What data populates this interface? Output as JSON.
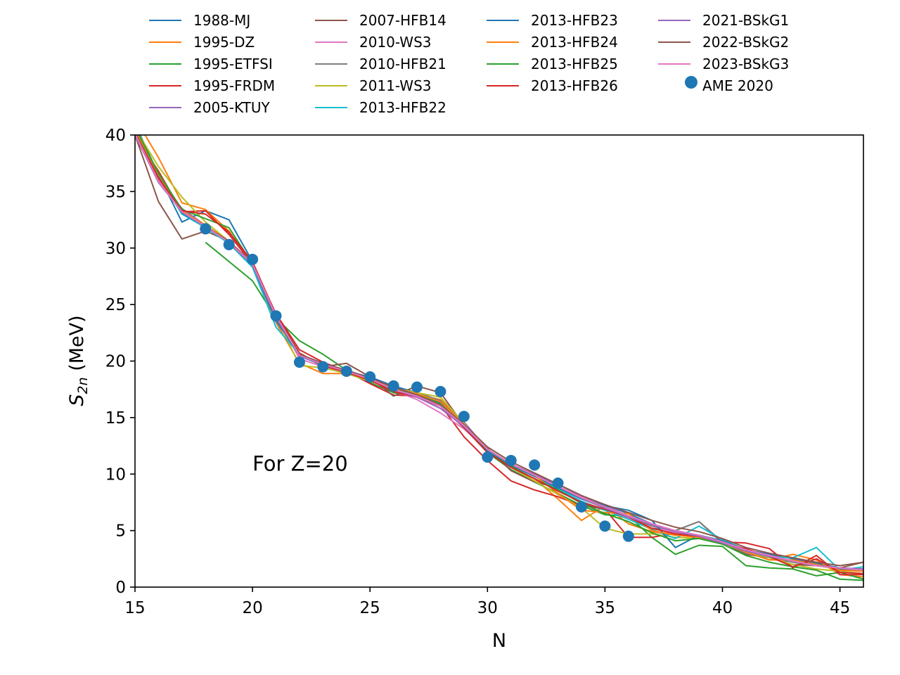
{
  "chart_data": {
    "type": "line",
    "xlabel": "N",
    "ylabel_main": "S",
    "ylabel_sub": "2n",
    "ylabel_unit": " (MeV)",
    "xlim": [
      15,
      46
    ],
    "ylim": [
      0,
      40
    ],
    "x_ticks": [
      15,
      20,
      25,
      30,
      35,
      40,
      45
    ],
    "y_ticks": [
      0,
      5,
      10,
      15,
      20,
      25,
      30,
      35,
      40
    ],
    "annotation": {
      "text": "For Z=20",
      "x": 20,
      "y": 10.3
    },
    "legend_columns": [
      [
        "1988-MJ",
        "1995-DZ",
        "1995-ETFSI",
        "1995-FRDM",
        "2005-KTUY"
      ],
      [
        "2007-HFB14",
        "2010-WS3",
        "2010-HFB21",
        "2011-WS3",
        "2013-HFB22"
      ],
      [
        "2013-HFB23",
        "2013-HFB24",
        "2013-HFB25",
        "2013-HFB26"
      ],
      [
        "2021-BSkG1",
        "2022-BSkG2",
        "2023-BSkG3",
        "AME 2020"
      ]
    ],
    "series": [
      {
        "name": "1988-MJ",
        "color": "#1f77b4",
        "x": [
          15,
          16,
          17,
          18,
          19,
          20,
          21,
          22,
          23,
          24,
          25,
          26,
          27,
          28,
          29,
          30,
          31,
          32,
          33,
          34,
          35,
          36,
          37,
          38,
          39,
          40,
          41,
          42,
          43,
          44,
          45,
          46
        ],
        "y": [
          41.0,
          36.5,
          32.3,
          33.3,
          32.5,
          28.8,
          23.6,
          20.6,
          19.8,
          19.1,
          18.6,
          17.8,
          17.2,
          16.5,
          14.5,
          12.1,
          10.8,
          10.0,
          8.9,
          8.0,
          7.3,
          6.5,
          5.6,
          4.9,
          4.5,
          4.0,
          3.3,
          2.9,
          2.5,
          2.1,
          1.7,
          1.5
        ]
      },
      {
        "name": "1995-DZ",
        "color": "#ff7f0e",
        "x": [
          15,
          16,
          17,
          18,
          19,
          20,
          21,
          22,
          23,
          24,
          25,
          26,
          27,
          28,
          29,
          30,
          31,
          32,
          33,
          34,
          35,
          36,
          37,
          38,
          39,
          40,
          41,
          42,
          43,
          44,
          45,
          46
        ],
        "y": [
          41.5,
          38.0,
          34.0,
          33.4,
          31.5,
          28.5,
          23.4,
          19.8,
          18.9,
          18.9,
          18.5,
          17.2,
          17.0,
          16.6,
          14.6,
          12.0,
          10.6,
          9.6,
          7.8,
          5.9,
          7.2,
          5.6,
          4.9,
          4.6,
          4.4,
          4.0,
          3.1,
          2.4,
          2.9,
          2.4,
          1.1,
          0.9
        ]
      },
      {
        "name": "1995-ETFSI",
        "color": "#2ca02c",
        "x": [
          18,
          19,
          20,
          21,
          22,
          23,
          24,
          25,
          26,
          27,
          28,
          29,
          30,
          31,
          32,
          33,
          34,
          35,
          36,
          37,
          38,
          39,
          40,
          41,
          42,
          43,
          44,
          45,
          46
        ],
        "y": [
          30.5,
          28.8,
          27.1,
          23.8,
          21.8,
          20.6,
          19.2,
          18.1,
          17.2,
          16.9,
          16.0,
          14.2,
          11.9,
          10.4,
          9.3,
          8.3,
          7.2,
          6.4,
          6.3,
          4.4,
          2.9,
          3.7,
          3.6,
          1.9,
          1.7,
          1.6,
          1.0,
          1.3,
          0.7
        ]
      },
      {
        "name": "1995-FRDM",
        "color": "#d62728",
        "x": [
          15,
          16,
          17,
          18,
          19,
          20,
          21,
          22,
          23,
          24,
          25,
          26,
          27,
          28,
          29,
          30,
          31,
          32,
          33,
          34,
          35,
          36,
          37,
          38,
          39,
          40,
          41,
          42,
          43,
          44,
          45,
          46
        ],
        "y": [
          40.0,
          36.8,
          33.2,
          33.3,
          31.2,
          28.6,
          24.2,
          21.0,
          19.9,
          19.1,
          18.0,
          17.0,
          16.9,
          16.1,
          13.3,
          11.2,
          9.4,
          8.6,
          8.0,
          7.2,
          6.9,
          4.4,
          4.4,
          4.8,
          4.5,
          4.0,
          3.9,
          3.4,
          1.7,
          2.8,
          1.1,
          1.1
        ]
      },
      {
        "name": "2005-KTUY",
        "color": "#9467bd",
        "x": [
          15,
          16,
          17,
          18,
          19,
          20,
          21,
          22,
          23,
          24,
          25,
          26,
          27,
          28,
          29,
          30,
          31,
          32,
          33,
          34,
          35,
          36,
          37,
          38,
          39,
          40,
          41,
          42,
          43,
          44,
          45,
          46
        ],
        "y": [
          39.9,
          36.1,
          33.5,
          32.0,
          30.6,
          28.7,
          24.0,
          20.4,
          19.7,
          19.2,
          18.5,
          17.7,
          17.0,
          16.3,
          14.6,
          12.2,
          10.9,
          10.0,
          9.1,
          8.1,
          7.2,
          6.3,
          5.6,
          4.9,
          4.5,
          4.0,
          3.3,
          2.8,
          2.3,
          1.9,
          1.7,
          1.6
        ]
      },
      {
        "name": "2007-HFB14",
        "color": "#8c564b",
        "x": [
          15,
          16,
          17,
          18,
          19,
          20,
          21,
          22,
          23,
          24,
          25,
          26,
          27,
          28,
          29,
          30,
          31,
          32,
          33,
          34,
          35,
          36,
          37,
          38,
          39,
          40,
          41,
          42,
          43,
          44,
          45,
          46
        ],
        "y": [
          40.0,
          34.1,
          30.8,
          31.5,
          30.6,
          28.6,
          23.8,
          20.7,
          19.5,
          19.8,
          18.6,
          16.9,
          17.8,
          17.2,
          14.3,
          12.3,
          10.3,
          9.3,
          8.8,
          7.4,
          6.8,
          6.1,
          5.2,
          5.0,
          5.8,
          3.9,
          2.9,
          2.6,
          2.0,
          1.9,
          1.7,
          2.2
        ]
      },
      {
        "name": "2010-WS3",
        "color": "#e377c2",
        "x": [
          15,
          16,
          17,
          18,
          19,
          20,
          21,
          22,
          23,
          24,
          25,
          26,
          27,
          28,
          29,
          30,
          31,
          32,
          33,
          34,
          35,
          36,
          37,
          38,
          39,
          40,
          41,
          42,
          43,
          44,
          45,
          46
        ],
        "y": [
          40.2,
          36.0,
          33.3,
          32.0,
          30.5,
          28.5,
          24.2,
          20.2,
          19.5,
          19.0,
          18.3,
          17.4,
          16.6,
          15.4,
          14.0,
          12.2,
          10.9,
          9.9,
          8.9,
          8.0,
          7.0,
          6.1,
          5.4,
          4.8,
          4.4,
          3.8,
          3.2,
          2.7,
          2.2,
          1.9,
          1.7,
          1.5
        ]
      },
      {
        "name": "2010-HFB21",
        "color": "#7f7f7f",
        "x": [
          15,
          16,
          17,
          18,
          19,
          20,
          21,
          22,
          23,
          24,
          25,
          26,
          27,
          28,
          29,
          30,
          31,
          32,
          33,
          34,
          35,
          36,
          37,
          38,
          39,
          40,
          41,
          42,
          43,
          44,
          45,
          46
        ],
        "y": [
          40.3,
          36.3,
          33.2,
          31.8,
          30.5,
          28.4,
          23.5,
          20.5,
          19.6,
          19.1,
          18.4,
          17.4,
          17.2,
          16.5,
          14.2,
          12.1,
          10.8,
          9.8,
          8.8,
          7.8,
          7.0,
          6.2,
          5.4,
          5.0,
          5.8,
          4.0,
          3.0,
          2.6,
          2.2,
          1.9,
          1.6,
          1.5
        ]
      },
      {
        "name": "2011-WS3",
        "color": "#bcbd22",
        "x": [
          15,
          16,
          17,
          18,
          19,
          20,
          21,
          22,
          23,
          24,
          25,
          26,
          27,
          28,
          29,
          30,
          31,
          32,
          33,
          34,
          35,
          36,
          37,
          38,
          39,
          40,
          41,
          42,
          43,
          44,
          45,
          46
        ],
        "y": [
          40.6,
          37.2,
          34.5,
          32.3,
          30.6,
          28.6,
          24.0,
          19.6,
          19.4,
          18.9,
          18.2,
          17.6,
          17.2,
          16.8,
          14.5,
          12.0,
          10.6,
          9.4,
          8.2,
          7.0,
          5.2,
          4.7,
          4.7,
          4.4,
          4.3,
          3.8,
          3.2,
          2.6,
          2.0,
          1.6,
          1.4,
          1.2
        ]
      },
      {
        "name": "2013-HFB22",
        "color": "#17becf",
        "x": [
          15,
          16,
          17,
          18,
          19,
          20,
          21,
          22,
          23,
          24,
          25,
          26,
          27,
          28,
          29,
          30,
          31,
          32,
          33,
          34,
          35,
          36,
          37,
          38,
          39,
          40,
          41,
          42,
          43,
          44,
          45,
          46
        ],
        "y": [
          40.5,
          36.3,
          33.0,
          31.8,
          30.4,
          28.3,
          23.0,
          20.6,
          19.7,
          19.1,
          18.4,
          17.5,
          17.1,
          16.4,
          14.2,
          12.2,
          10.9,
          9.8,
          8.7,
          7.6,
          6.8,
          6.0,
          5.1,
          4.3,
          5.4,
          4.2,
          3.3,
          2.7,
          2.6,
          3.5,
          1.5,
          1.8
        ]
      },
      {
        "name": "2013-HFB23",
        "color": "#1f77b4",
        "x": [
          15,
          16,
          17,
          18,
          19,
          20,
          21,
          22,
          23,
          24,
          25,
          26,
          27,
          28,
          29,
          30,
          31,
          32,
          33,
          34,
          35,
          36,
          37,
          38,
          39,
          40,
          41,
          42,
          43,
          44,
          45,
          46
        ],
        "y": [
          40.4,
          36.4,
          33.1,
          31.9,
          30.5,
          28.5,
          23.7,
          20.5,
          19.6,
          19.1,
          18.5,
          17.6,
          17.0,
          16.3,
          14.3,
          12.0,
          10.8,
          9.8,
          8.8,
          7.8,
          7.2,
          6.8,
          5.9,
          3.5,
          4.6,
          4.1,
          3.3,
          2.8,
          2.3,
          2.0,
          1.6,
          1.5
        ]
      },
      {
        "name": "2013-HFB24",
        "color": "#ff7f0e",
        "x": [
          15,
          16,
          17,
          18,
          19,
          20,
          21,
          22,
          23,
          24,
          25,
          26,
          27,
          28,
          29,
          30,
          31,
          32,
          33,
          34,
          35,
          36,
          37,
          38,
          39,
          40,
          41,
          42,
          43,
          44,
          45,
          46
        ],
        "y": [
          40.5,
          36.5,
          33.3,
          32.0,
          30.6,
          28.6,
          23.9,
          20.6,
          19.7,
          19.1,
          18.5,
          17.6,
          17.1,
          16.4,
          14.4,
          12.2,
          10.9,
          9.9,
          8.3,
          6.8,
          6.6,
          6.5,
          5.0,
          4.6,
          4.4,
          4.0,
          3.1,
          2.4,
          2.4,
          2.0,
          1.5,
          1.4
        ]
      },
      {
        "name": "2013-HFB25",
        "color": "#2ca02c",
        "x": [
          15,
          16,
          17,
          18,
          19,
          20,
          21,
          22,
          23,
          24,
          25,
          26,
          27,
          28,
          29,
          30,
          31,
          32,
          33,
          34,
          35,
          36,
          37,
          38,
          39,
          40,
          41,
          42,
          43,
          44,
          45,
          46
        ],
        "y": [
          40.7,
          36.6,
          33.4,
          32.6,
          31.8,
          28.6,
          24.0,
          20.7,
          19.6,
          19.0,
          18.4,
          17.5,
          17.0,
          16.2,
          14.2,
          11.9,
          10.7,
          9.6,
          8.6,
          7.4,
          6.5,
          5.8,
          4.8,
          4.1,
          4.3,
          3.8,
          2.8,
          2.2,
          1.8,
          1.5,
          0.7,
          0.6
        ]
      },
      {
        "name": "2013-HFB26",
        "color": "#d62728",
        "x": [
          15,
          16,
          17,
          18,
          19,
          20,
          21,
          22,
          23,
          24,
          25,
          26,
          27,
          28,
          29,
          30,
          31,
          32,
          33,
          34,
          35,
          36,
          37,
          38,
          39,
          40,
          41,
          42,
          43,
          44,
          45,
          46
        ],
        "y": [
          40.2,
          36.2,
          33.3,
          33.0,
          31.4,
          28.8,
          24.1,
          20.7,
          19.6,
          19.0,
          18.3,
          17.3,
          16.8,
          16.0,
          14.1,
          11.9,
          10.6,
          9.6,
          8.5,
          7.5,
          6.9,
          6.2,
          5.2,
          4.7,
          4.5,
          3.9,
          3.4,
          2.7,
          1.8,
          2.5,
          1.3,
          1.2
        ]
      },
      {
        "name": "2021-BSkG1",
        "color": "#9467bd",
        "x": [
          15,
          16,
          17,
          18,
          19,
          20,
          21,
          22,
          23,
          24,
          25,
          26,
          27,
          28,
          29,
          30,
          31,
          32,
          33,
          34,
          35,
          36,
          37,
          38,
          39,
          40,
          41,
          42,
          43,
          44,
          45,
          46
        ],
        "y": [
          40.0,
          35.8,
          33.2,
          31.9,
          30.5,
          28.5,
          23.9,
          20.5,
          19.7,
          19.1,
          18.4,
          17.5,
          16.8,
          15.8,
          14.2,
          12.2,
          10.9,
          9.9,
          8.9,
          7.9,
          7.0,
          6.2,
          5.5,
          4.9,
          4.5,
          3.9,
          3.2,
          2.7,
          2.3,
          1.9,
          1.7,
          1.6
        ]
      },
      {
        "name": "2022-BSkG2",
        "color": "#8c564b",
        "x": [
          15,
          16,
          17,
          18,
          19,
          20,
          21,
          22,
          23,
          24,
          25,
          26,
          27,
          28,
          29,
          30,
          31,
          32,
          33,
          34,
          35,
          36,
          37,
          38,
          39,
          40,
          41,
          42,
          43,
          44,
          45,
          46
        ],
        "y": [
          40.1,
          35.9,
          33.2,
          31.9,
          30.6,
          28.6,
          24.0,
          20.6,
          19.8,
          19.2,
          18.5,
          17.7,
          17.0,
          16.1,
          14.4,
          12.4,
          11.1,
          10.1,
          9.1,
          8.1,
          7.3,
          6.6,
          5.9,
          5.3,
          4.9,
          4.3,
          3.5,
          3.0,
          2.6,
          2.2,
          1.9,
          2.2
        ]
      },
      {
        "name": "2023-BSkG3",
        "color": "#e377c2",
        "x": [
          15,
          16,
          17,
          18,
          19,
          20,
          21,
          22,
          23,
          24,
          25,
          26,
          27,
          28,
          29,
          30,
          31,
          32,
          33,
          34,
          35,
          36,
          37,
          38,
          39,
          40,
          41,
          42,
          43,
          44,
          45,
          46
        ],
        "y": [
          40.1,
          35.9,
          33.2,
          31.9,
          30.5,
          28.6,
          24.0,
          20.5,
          19.7,
          19.1,
          18.4,
          17.5,
          16.9,
          16.0,
          14.3,
          12.2,
          10.9,
          9.9,
          8.9,
          7.9,
          7.1,
          6.3,
          5.6,
          5.0,
          4.6,
          4.0,
          3.3,
          2.8,
          2.3,
          1.9,
          1.7,
          1.5
        ]
      }
    ],
    "experimental": {
      "name": "AME 2020",
      "color": "#1f77b4",
      "x": [
        18,
        19,
        20,
        21,
        22,
        23,
        24,
        25,
        26,
        27,
        28,
        29,
        30,
        31,
        32,
        33,
        34,
        35,
        36
      ],
      "y": [
        31.7,
        30.3,
        29.0,
        24.0,
        19.9,
        19.5,
        19.1,
        18.6,
        17.8,
        17.7,
        17.3,
        15.1,
        11.5,
        11.2,
        10.8,
        9.2,
        7.1,
        5.4,
        4.5
      ]
    }
  }
}
